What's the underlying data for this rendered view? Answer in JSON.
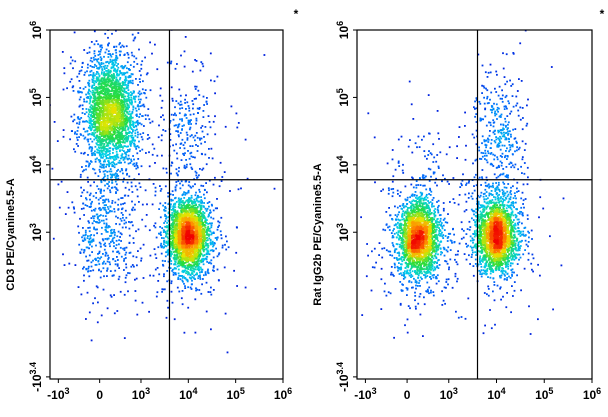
{
  "chart_data": [
    {
      "type": "scatter",
      "title": "",
      "xlabel": "",
      "ylabel": "CD3 PE/Cyanine5.5-A",
      "corner_mark": "*",
      "x_scale": "biexponential",
      "y_scale": "biexponential",
      "x_ticks": [
        {
          "value": -1000,
          "sup": "3",
          "base": "-10"
        },
        {
          "value": 0,
          "sup": "",
          "base": "0"
        },
        {
          "value": 1000,
          "sup": "3",
          "base": "10"
        },
        {
          "value": 10000,
          "sup": "4",
          "base": "10"
        },
        {
          "value": 100000,
          "sup": "5",
          "base": "10"
        },
        {
          "value": 1000000,
          "sup": "6",
          "base": "10"
        }
      ],
      "y_ticks": [
        {
          "value": -2512,
          "sup": "3.4",
          "base": "-10"
        },
        {
          "value": 1000,
          "sup": "3",
          "base": "10"
        },
        {
          "value": 10000,
          "sup": "4",
          "base": "10"
        },
        {
          "value": 100000,
          "sup": "5",
          "base": "10"
        },
        {
          "value": 1000000,
          "sup": "6",
          "base": "10"
        }
      ],
      "quadrant_gate": {
        "x": 4000,
        "y": 6000
      },
      "populations": [
        {
          "center": [
            200,
            60000
          ],
          "n": 2600
        },
        {
          "center": [
            10000,
            900
          ],
          "n": 2600
        },
        {
          "center": [
            100,
            900
          ],
          "n": 450
        },
        {
          "center": [
            10000,
            35000
          ],
          "n": 220
        }
      ],
      "grid": false,
      "legend": "none"
    },
    {
      "type": "scatter",
      "title": "",
      "xlabel": "",
      "ylabel": "Rat IgG2b PE/Cyanine5.5-A",
      "corner_mark": "*",
      "x_scale": "biexponential",
      "y_scale": "biexponential",
      "x_ticks": [
        {
          "value": -1000,
          "sup": "3",
          "base": "-10"
        },
        {
          "value": 0,
          "sup": "",
          "base": "0"
        },
        {
          "value": 1000,
          "sup": "3",
          "base": "10"
        },
        {
          "value": 10000,
          "sup": "4",
          "base": "10"
        },
        {
          "value": 100000,
          "sup": "5",
          "base": "10"
        },
        {
          "value": 1000000,
          "sup": "6",
          "base": "10"
        }
      ],
      "y_ticks": [
        {
          "value": -2512,
          "sup": "3.4",
          "base": "-10"
        },
        {
          "value": 1000,
          "sup": "3",
          "base": "10"
        },
        {
          "value": 10000,
          "sup": "4",
          "base": "10"
        },
        {
          "value": 100000,
          "sup": "5",
          "base": "10"
        },
        {
          "value": 1000000,
          "sup": "6",
          "base": "10"
        }
      ],
      "quadrant_gate": {
        "x": 4000,
        "y": 6000
      },
      "populations": [
        {
          "center": [
            200,
            800
          ],
          "n": 2300
        },
        {
          "center": [
            10000,
            900
          ],
          "n": 2300
        },
        {
          "center": [
            10000,
            30000
          ],
          "n": 330
        },
        {
          "center": [
            200,
            10000
          ],
          "n": 70
        }
      ],
      "grid": false,
      "legend": "none"
    }
  ]
}
